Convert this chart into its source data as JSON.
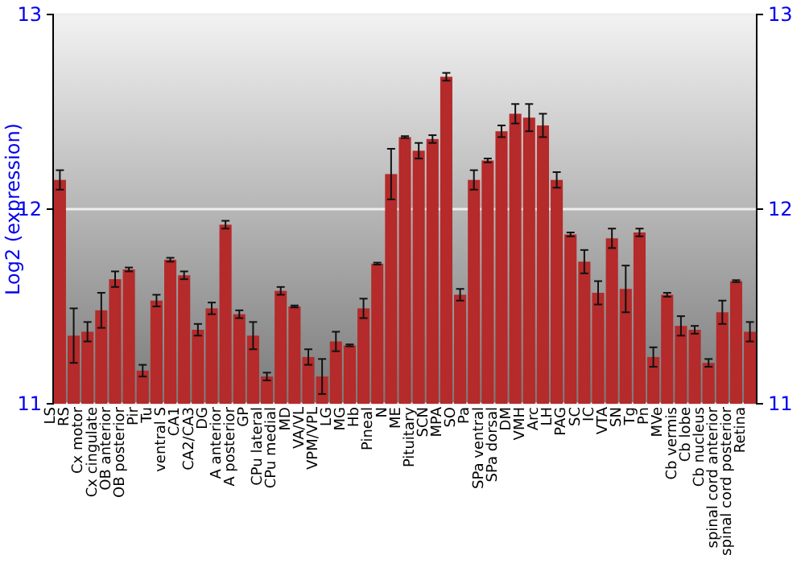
{
  "chart_data": {
    "type": "bar",
    "ylabel": "Log2 (expression)",
    "categories": [
      "LS",
      "RS",
      "Cx motor",
      "Cx cingulate",
      "OB anterior",
      "OB posterior",
      "Pir",
      "Tu",
      "ventral S",
      "CA1",
      "CA2/CA3",
      "DG",
      "A anterior",
      "A posterior",
      "GP",
      "CPu lateral",
      "CPu medial",
      "MD",
      "VA/VL",
      "VPM/VPL",
      "LG",
      "MG",
      "Hb",
      "Pineal",
      "N",
      "ME",
      "Pituitary",
      "SCN",
      "MPA",
      "SO",
      "Pa",
      "SPa ventral",
      "SPa dorsal",
      "DM",
      "VMH",
      "Arc",
      "LH",
      "PAG",
      "SC",
      "IC",
      "VTA",
      "SN",
      "Tg",
      "Pn",
      "MVe",
      "Cb vermis",
      "Cb lobe",
      "Cb nucleus",
      "spinal cord anterior",
      "spinal cord posterior",
      "Retina"
    ],
    "values": [
      12.15,
      11.35,
      11.37,
      11.48,
      11.64,
      11.69,
      11.17,
      11.53,
      11.74,
      11.66,
      11.38,
      11.49,
      11.92,
      11.46,
      11.35,
      11.14,
      11.58,
      11.5,
      11.24,
      11.14,
      11.32,
      11.3,
      11.49,
      11.72,
      12.18,
      12.37,
      12.3,
      12.36,
      12.68,
      11.56,
      12.15,
      12.25,
      12.4,
      12.49,
      12.47,
      12.43,
      12.15,
      11.87,
      11.73,
      11.57,
      11.85,
      11.59,
      11.88,
      11.24,
      11.56,
      11.4,
      11.38,
      11.21,
      11.47,
      11.63,
      11.37
    ],
    "errors": [
      0.05,
      0.14,
      0.05,
      0.09,
      0.04,
      0.01,
      0.03,
      0.03,
      0.01,
      0.02,
      0.03,
      0.03,
      0.02,
      0.02,
      0.07,
      0.02,
      0.02,
      0.005,
      0.04,
      0.09,
      0.05,
      0.005,
      0.05,
      0.005,
      0.13,
      0.005,
      0.04,
      0.02,
      0.02,
      0.03,
      0.05,
      0.01,
      0.03,
      0.05,
      0.07,
      0.06,
      0.04,
      0.01,
      0.06,
      0.06,
      0.05,
      0.12,
      0.02,
      0.05,
      0.01,
      0.05,
      0.02,
      0.02,
      0.06,
      0.005,
      0.05
    ],
    "color": "#b52a2a",
    "ylim": [
      11,
      13
    ],
    "yticks": [
      11,
      12,
      13
    ],
    "y2lim": [
      11,
      13
    ],
    "y2ticks": [
      11,
      12,
      13
    ],
    "grid": "y"
  }
}
